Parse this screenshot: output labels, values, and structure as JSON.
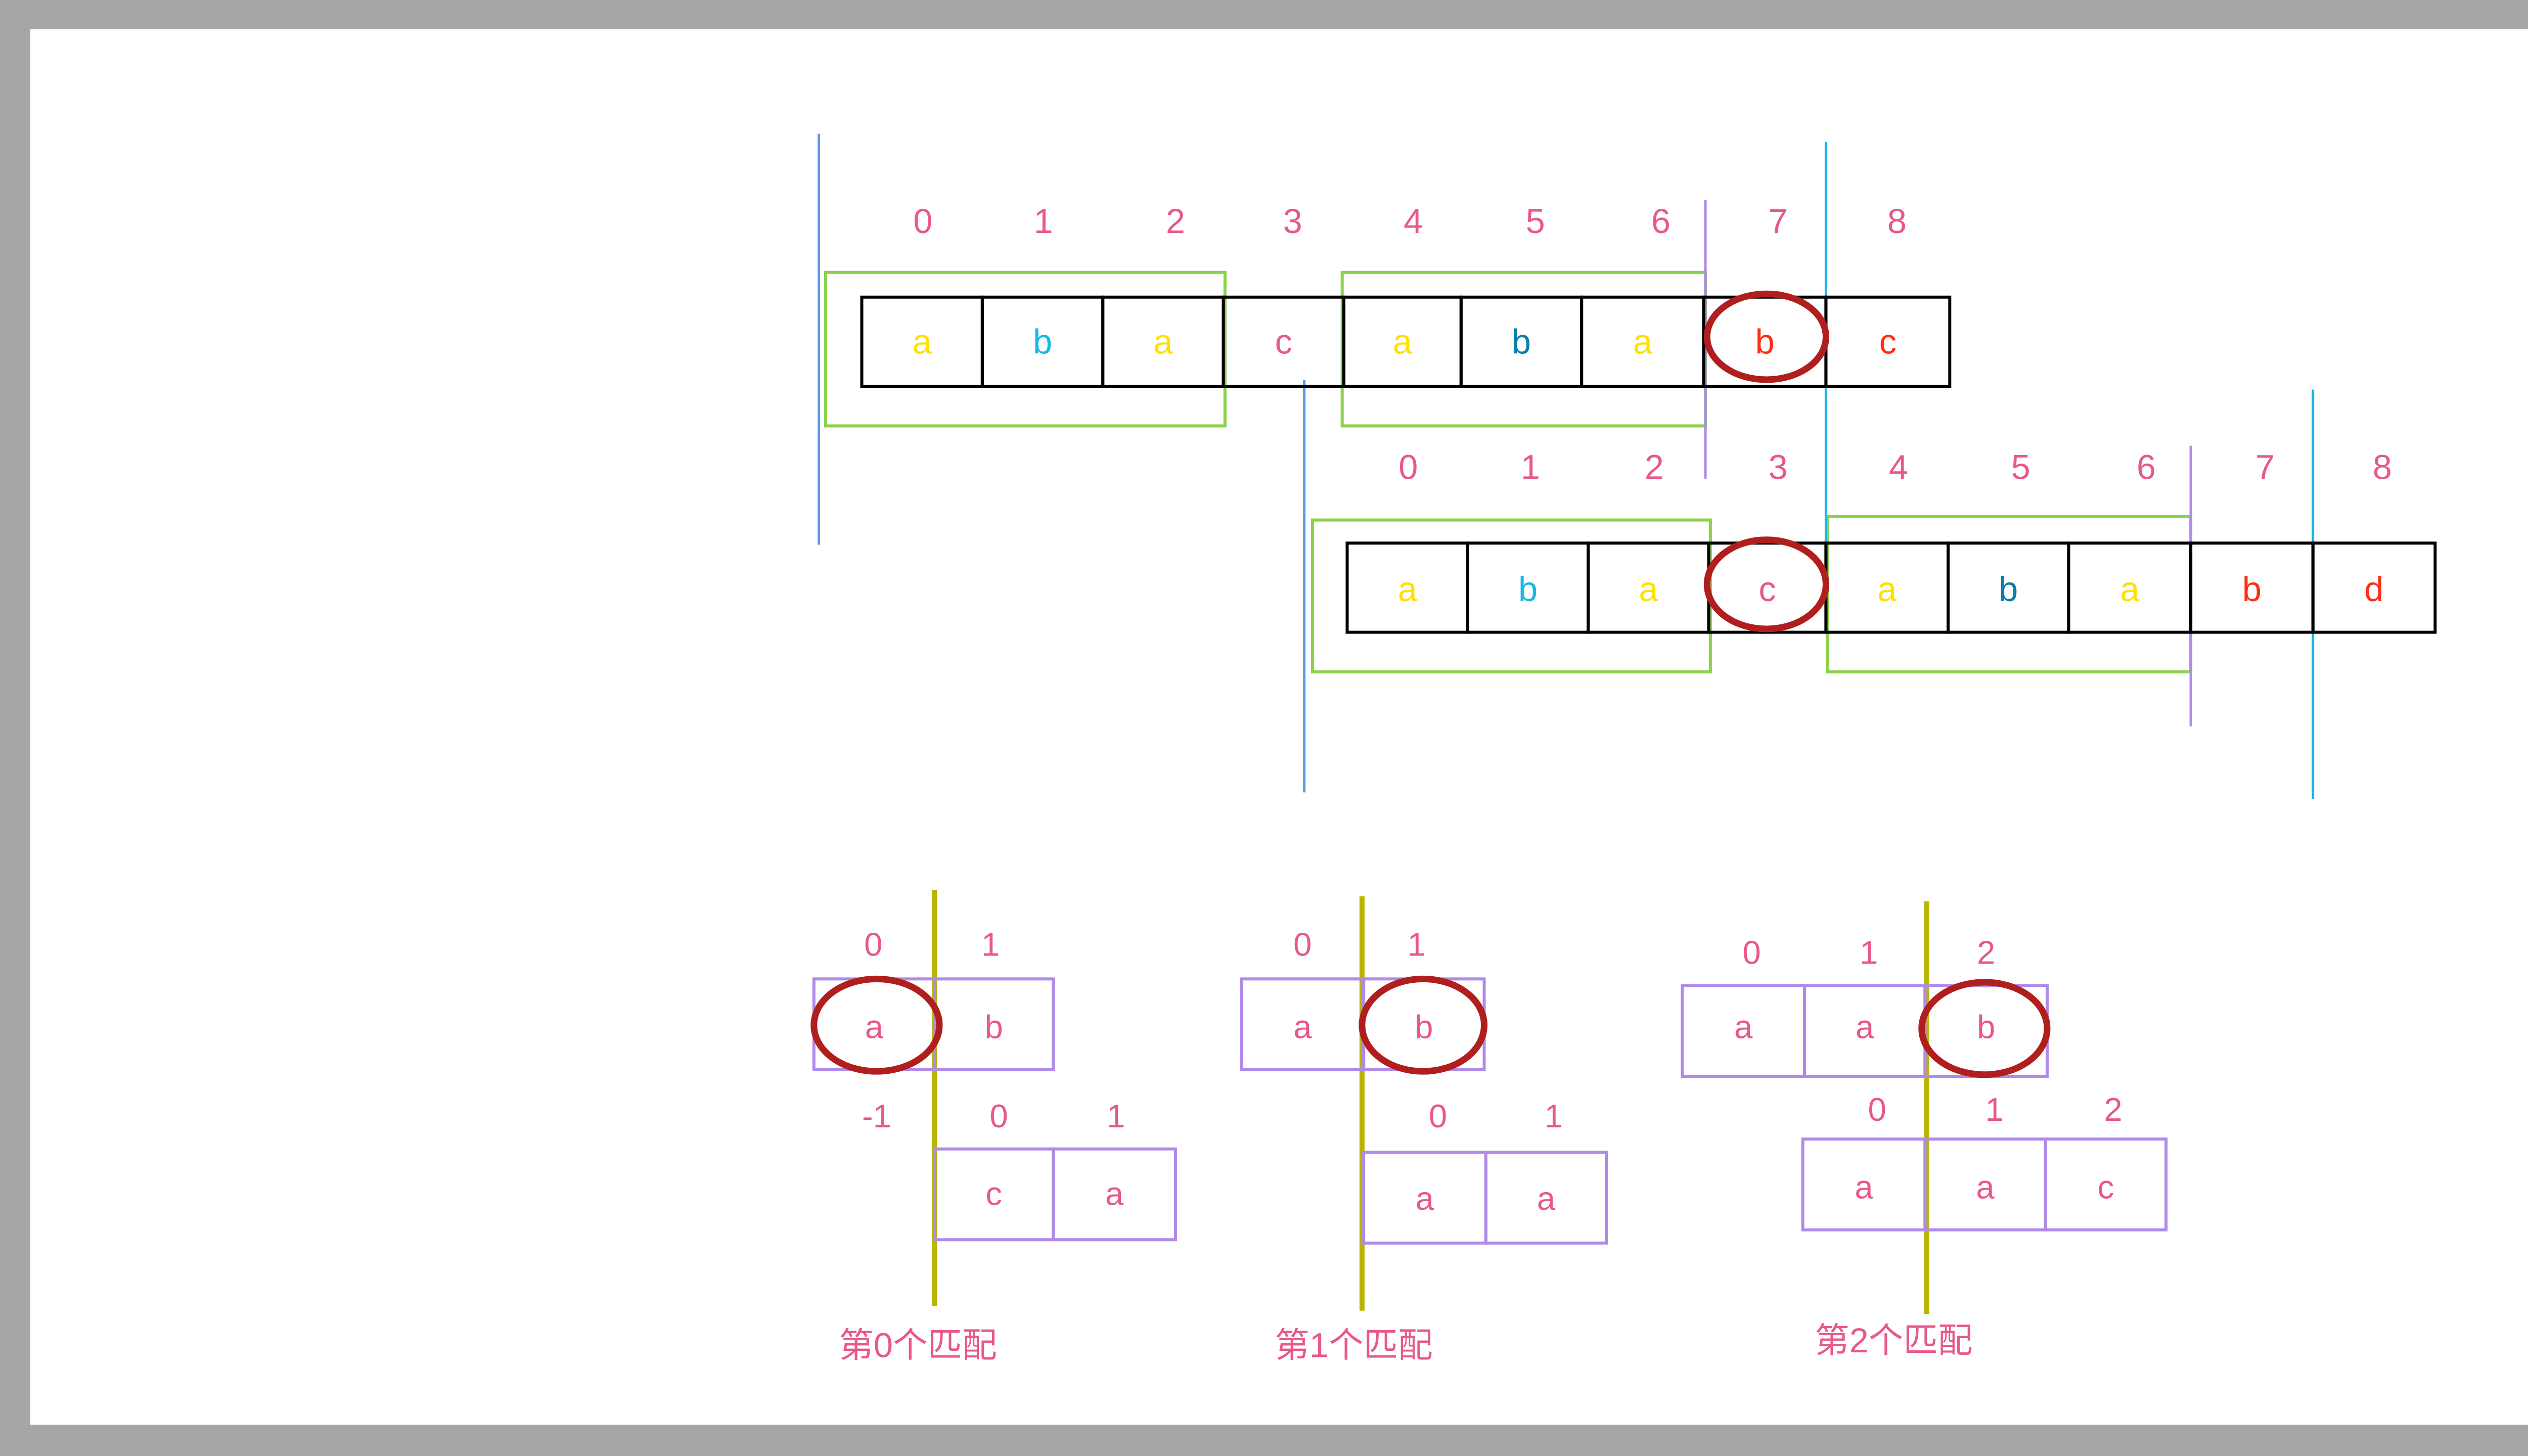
{
  "colors": {
    "frame": "#a6a6a6",
    "background": "#ffffff",
    "index_text": "#e8588a",
    "cell_border": "#000000",
    "green_box": "#8cd14a",
    "purple": "#b08ae8",
    "blue_line": "#5a9be0",
    "cyan_line": "#1eb4e6",
    "olive_line": "#b8b400",
    "circle": "#b01e1e",
    "letter_yellow": "#ffe100",
    "letter_cyan": "#17b8e8",
    "letter_teal": "#0a7ea8",
    "letter_pink": "#e8588a",
    "letter_red": "#ff2d14"
  },
  "row1": {
    "indices": [
      "0",
      "1",
      "2",
      "3",
      "4",
      "5",
      "6",
      "7",
      "8"
    ],
    "cells": [
      {
        "char": "a",
        "color": "letter_yellow"
      },
      {
        "char": "b",
        "color": "letter_cyan"
      },
      {
        "char": "a",
        "color": "letter_yellow"
      },
      {
        "char": "c",
        "color": "letter_pink"
      },
      {
        "char": "a",
        "color": "letter_yellow"
      },
      {
        "char": "b",
        "color": "letter_teal"
      },
      {
        "char": "a",
        "color": "letter_yellow"
      },
      {
        "char": "b",
        "color": "letter_red"
      },
      {
        "char": "c",
        "color": "letter_red"
      }
    ],
    "circled_index": 7
  },
  "row2": {
    "indices": [
      "0",
      "1",
      "2",
      "3",
      "4",
      "5",
      "6",
      "7",
      "8"
    ],
    "cells": [
      {
        "char": "a",
        "color": "letter_yellow"
      },
      {
        "char": "b",
        "color": "letter_cyan"
      },
      {
        "char": "a",
        "color": "letter_yellow"
      },
      {
        "char": "c",
        "color": "letter_pink"
      },
      {
        "char": "a",
        "color": "letter_yellow"
      },
      {
        "char": "b",
        "color": "letter_teal"
      },
      {
        "char": "a",
        "color": "letter_yellow"
      },
      {
        "char": "b",
        "color": "letter_red"
      },
      {
        "char": "d",
        "color": "letter_red"
      }
    ],
    "circled_index": 3
  },
  "matches": [
    {
      "caption": "第0个匹配",
      "top_indices": [
        "0",
        "1"
      ],
      "top_cells": [
        "a",
        "b"
      ],
      "top_circled": 0,
      "bottom_indices": [
        "-1",
        "0",
        "1"
      ],
      "bottom_cells": [
        "c",
        "a"
      ]
    },
    {
      "caption": "第1个匹配",
      "top_indices": [
        "0",
        "1"
      ],
      "top_cells": [
        "a",
        "b"
      ],
      "top_circled": 1,
      "bottom_indices": [
        "0",
        "1"
      ],
      "bottom_cells": [
        "a",
        "a"
      ]
    },
    {
      "caption": "第2个匹配",
      "top_indices": [
        "0",
        "1",
        "2"
      ],
      "top_cells": [
        "a",
        "a",
        "b"
      ],
      "top_circled": 2,
      "bottom_indices": [
        "0",
        "1",
        "2"
      ],
      "bottom_cells": [
        "a",
        "a",
        "c"
      ]
    }
  ]
}
